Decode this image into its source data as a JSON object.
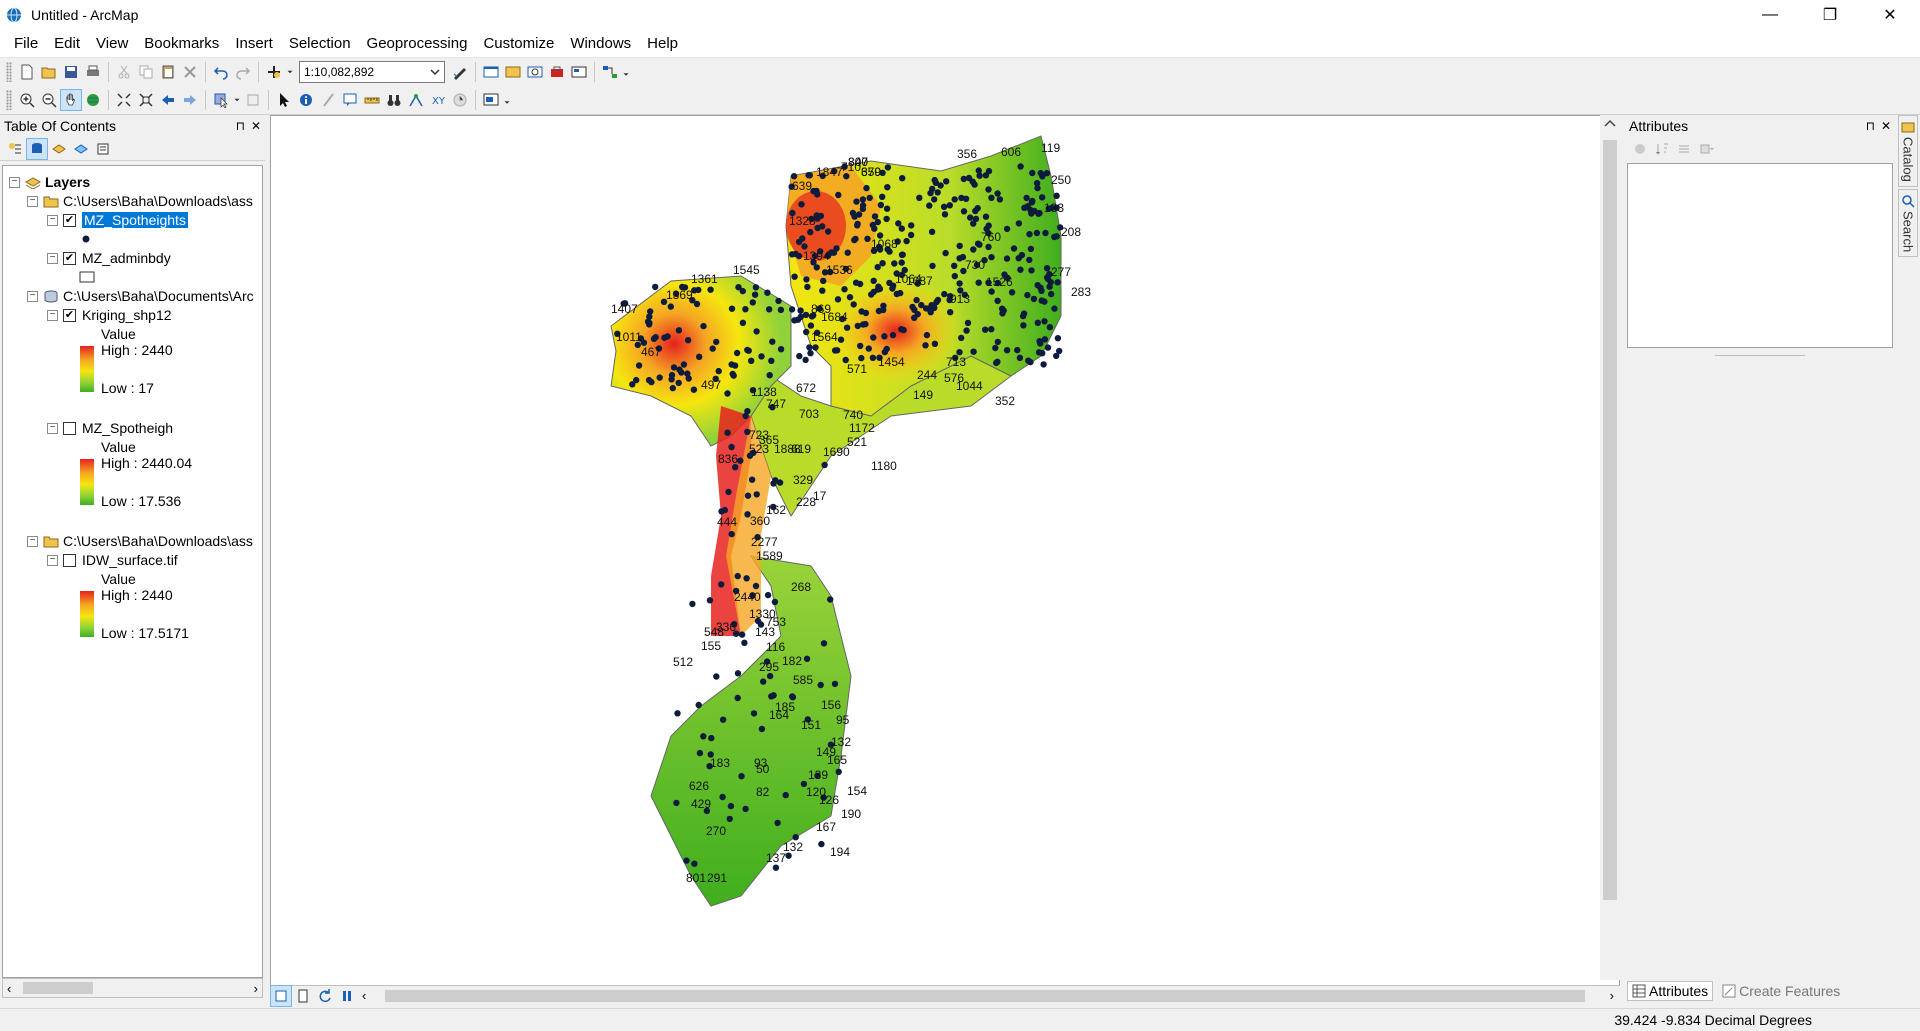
{
  "window": {
    "title": "Untitled - ArcMap",
    "minimize": "—",
    "restore": "❐",
    "close": "✕"
  },
  "menubar": [
    "File",
    "Edit",
    "View",
    "Bookmarks",
    "Insert",
    "Selection",
    "Geoprocessing",
    "Customize",
    "Windows",
    "Help"
  ],
  "toolbar": {
    "scale": "1:10,082,892"
  },
  "toc": {
    "title": "Table Of Contents",
    "root": "Layers",
    "groups": [
      {
        "path": "C:\\Users\\Baha\\Downloads\\ass",
        "layers": [
          {
            "name": "MZ_Spotheights",
            "checked": true,
            "selected": true
          },
          {
            "name": "MZ_adminbdy",
            "checked": true
          }
        ]
      },
      {
        "path": "C:\\Users\\Baha\\Documents\\Arc",
        "layers": [
          {
            "name": "Kriging_shp12",
            "checked": true,
            "legend": {
              "title": "Value",
              "high": "High : 2440",
              "low": "Low : 17"
            }
          },
          {
            "name": "MZ_Spotheigh",
            "checked": false,
            "legend": {
              "title": "Value",
              "high": "High : 2440.04",
              "low": "Low : 17.536"
            }
          }
        ]
      },
      {
        "path": "C:\\Users\\Baha\\Downloads\\ass",
        "layers": [
          {
            "name": "IDW_surface.tif",
            "checked": false,
            "legend": {
              "title": "Value",
              "high": "High : 2440",
              "low": "Low : 17.5171"
            }
          }
        ]
      }
    ]
  },
  "map": {
    "colors": {
      "high": "#e6221f",
      "mid": "#f5e60f",
      "low": "#3fae1e",
      "point": "#0d1b3d"
    },
    "labels": [
      {
        "t": "807"
      },
      {
        "t": "679"
      },
      {
        "t": "356"
      },
      {
        "t": "606"
      },
      {
        "t": "119"
      },
      {
        "t": "250"
      },
      {
        "t": "133"
      },
      {
        "t": "208"
      },
      {
        "t": "277"
      },
      {
        "t": "283"
      },
      {
        "t": "639"
      },
      {
        "t": "1847"
      },
      {
        "t": "710"
      },
      {
        "t": "1328"
      },
      {
        "t": "1394"
      },
      {
        "t": "1536"
      },
      {
        "t": "1068"
      },
      {
        "t": "1545"
      },
      {
        "t": "1361"
      },
      {
        "t": "1369"
      },
      {
        "t": "869"
      },
      {
        "t": "1684"
      },
      {
        "t": "1564"
      },
      {
        "t": "1407"
      },
      {
        "t": "1011"
      },
      {
        "t": "467"
      },
      {
        "t": "497"
      },
      {
        "t": "1138"
      },
      {
        "t": "747"
      },
      {
        "t": "672"
      },
      {
        "t": "703"
      },
      {
        "t": "723"
      },
      {
        "t": "365"
      },
      {
        "t": "619"
      },
      {
        "t": "836"
      },
      {
        "t": "523"
      },
      {
        "t": "1888"
      },
      {
        "t": "1690"
      },
      {
        "t": "1180"
      },
      {
        "t": "329"
      },
      {
        "t": "17"
      },
      {
        "t": "228"
      },
      {
        "t": "162"
      },
      {
        "t": "444"
      },
      {
        "t": "360"
      },
      {
        "t": "2277"
      },
      {
        "t": "1589"
      },
      {
        "t": "2440"
      },
      {
        "t": "1330"
      },
      {
        "t": "753"
      },
      {
        "t": "268"
      },
      {
        "t": "336"
      },
      {
        "t": "143"
      },
      {
        "t": "116"
      },
      {
        "t": "182"
      },
      {
        "t": "548"
      },
      {
        "t": "155"
      },
      {
        "t": "512"
      },
      {
        "t": "295"
      },
      {
        "t": "585"
      },
      {
        "t": "185"
      },
      {
        "t": "164"
      },
      {
        "t": "156"
      },
      {
        "t": "95"
      },
      {
        "t": "132"
      },
      {
        "t": "151"
      },
      {
        "t": "149"
      },
      {
        "t": "165"
      },
      {
        "t": "183"
      },
      {
        "t": "93"
      },
      {
        "t": "50"
      },
      {
        "t": "139"
      },
      {
        "t": "82"
      },
      {
        "t": "120"
      },
      {
        "t": "126"
      },
      {
        "t": "154"
      },
      {
        "t": "626"
      },
      {
        "t": "429"
      },
      {
        "t": "190"
      },
      {
        "t": "270"
      },
      {
        "t": "167"
      },
      {
        "t": "132"
      },
      {
        "t": "194"
      },
      {
        "t": "137"
      },
      {
        "t": "801"
      },
      {
        "t": "291"
      },
      {
        "t": "1172"
      },
      {
        "t": "521"
      },
      {
        "t": "149"
      },
      {
        "t": "352"
      },
      {
        "t": "913"
      },
      {
        "t": "1526"
      },
      {
        "t": "730"
      },
      {
        "t": "760"
      },
      {
        "t": "1087"
      },
      {
        "t": "1064"
      },
      {
        "t": "1454"
      },
      {
        "t": "571"
      },
      {
        "t": "713"
      },
      {
        "t": "740"
      },
      {
        "t": "1044"
      },
      {
        "t": "576"
      },
      {
        "t": "244"
      },
      {
        "t": "340"
      },
      {
        "t": "350"
      }
    ]
  },
  "attributes": {
    "title": "Attributes",
    "tabs": [
      "Attributes",
      "Create Features"
    ]
  },
  "sidetabs": [
    "Catalog",
    "Search"
  ],
  "status": {
    "coords": "39.424  -9.834 Decimal Degrees"
  }
}
